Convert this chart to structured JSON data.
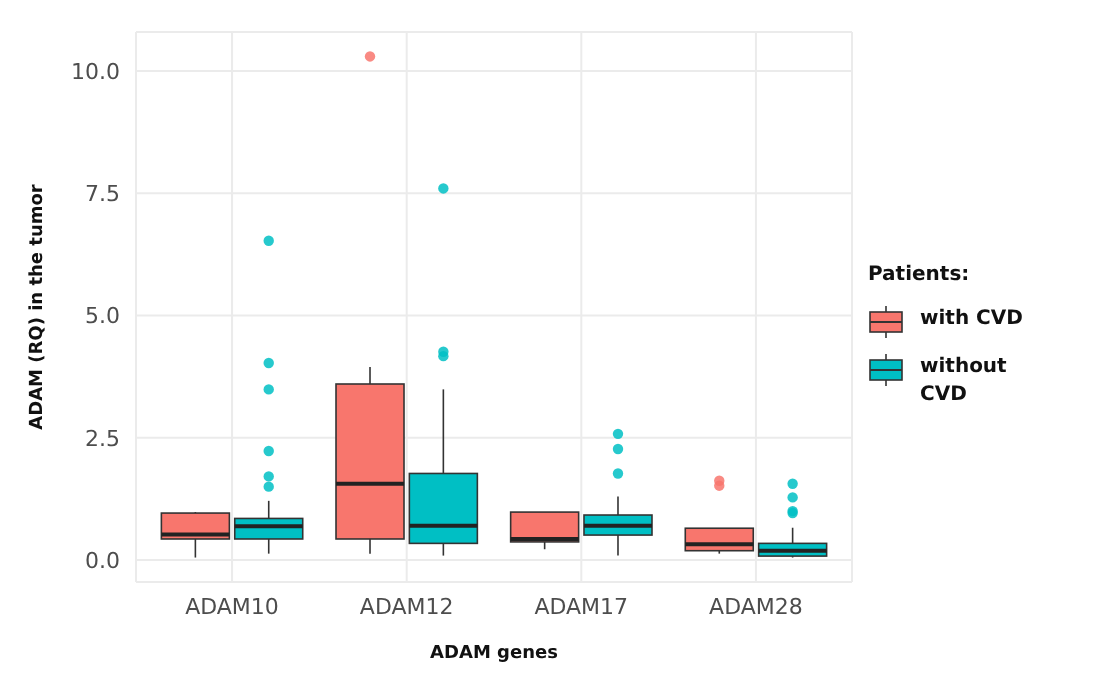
{
  "chart_data": {
    "type": "box",
    "xlabel": "ADAM genes",
    "ylabel": "ADAM (RQ) in the tumor",
    "legend_title": "Patients:",
    "legend": "right",
    "grid": true,
    "categories": [
      "ADAM10",
      "ADAM12",
      "ADAM17",
      "ADAM28"
    ],
    "ylim": [
      -0.45,
      10.8
    ],
    "yticks": [
      {
        "value": 0,
        "label": "0.0"
      },
      2.5,
      {
        "value": 5,
        "label": "5.0"
      },
      7.5,
      {
        "value": 10,
        "label": "10.0"
      }
    ],
    "series": [
      {
        "name": "with CVD",
        "color": "#f8766d",
        "boxes": [
          {
            "low": 0.05,
            "q1": 0.43,
            "median": 0.52,
            "q3": 0.96,
            "high": 0.98
          },
          {
            "low": 0.13,
            "q1": 0.43,
            "median": 1.56,
            "q3": 3.6,
            "high": 3.95,
            "outliers": [
              10.3
            ]
          },
          {
            "low": 0.22,
            "q1": 0.37,
            "median": 0.43,
            "q3": 0.98,
            "high": 0.98
          },
          {
            "low": 0.13,
            "q1": 0.19,
            "median": 0.32,
            "q3": 0.65,
            "high": 0.65,
            "outliers": [
              1.62,
              1.52
            ]
          }
        ]
      },
      {
        "name": "without CVD",
        "color": "#00bfc4",
        "boxes": [
          {
            "low": 0.13,
            "q1": 0.43,
            "median": 0.69,
            "q3": 0.85,
            "high": 1.21,
            "outliers": [
              6.53,
              4.03,
              3.49,
              2.23,
              1.71,
              1.5
            ]
          },
          {
            "low": 0.09,
            "q1": 0.34,
            "median": 0.7,
            "q3": 1.77,
            "high": 3.49,
            "outliers": [
              7.6,
              4.26,
              4.17
            ]
          },
          {
            "low": 0.09,
            "q1": 0.51,
            "median": 0.7,
            "q3": 0.92,
            "high": 1.3,
            "outliers": [
              2.58,
              2.27,
              1.77
            ]
          },
          {
            "low": 0.05,
            "q1": 0.08,
            "median": 0.19,
            "q3": 0.34,
            "high": 0.66,
            "outliers": [
              1.56,
              1.28,
              1.0,
              0.96
            ]
          }
        ]
      }
    ]
  }
}
